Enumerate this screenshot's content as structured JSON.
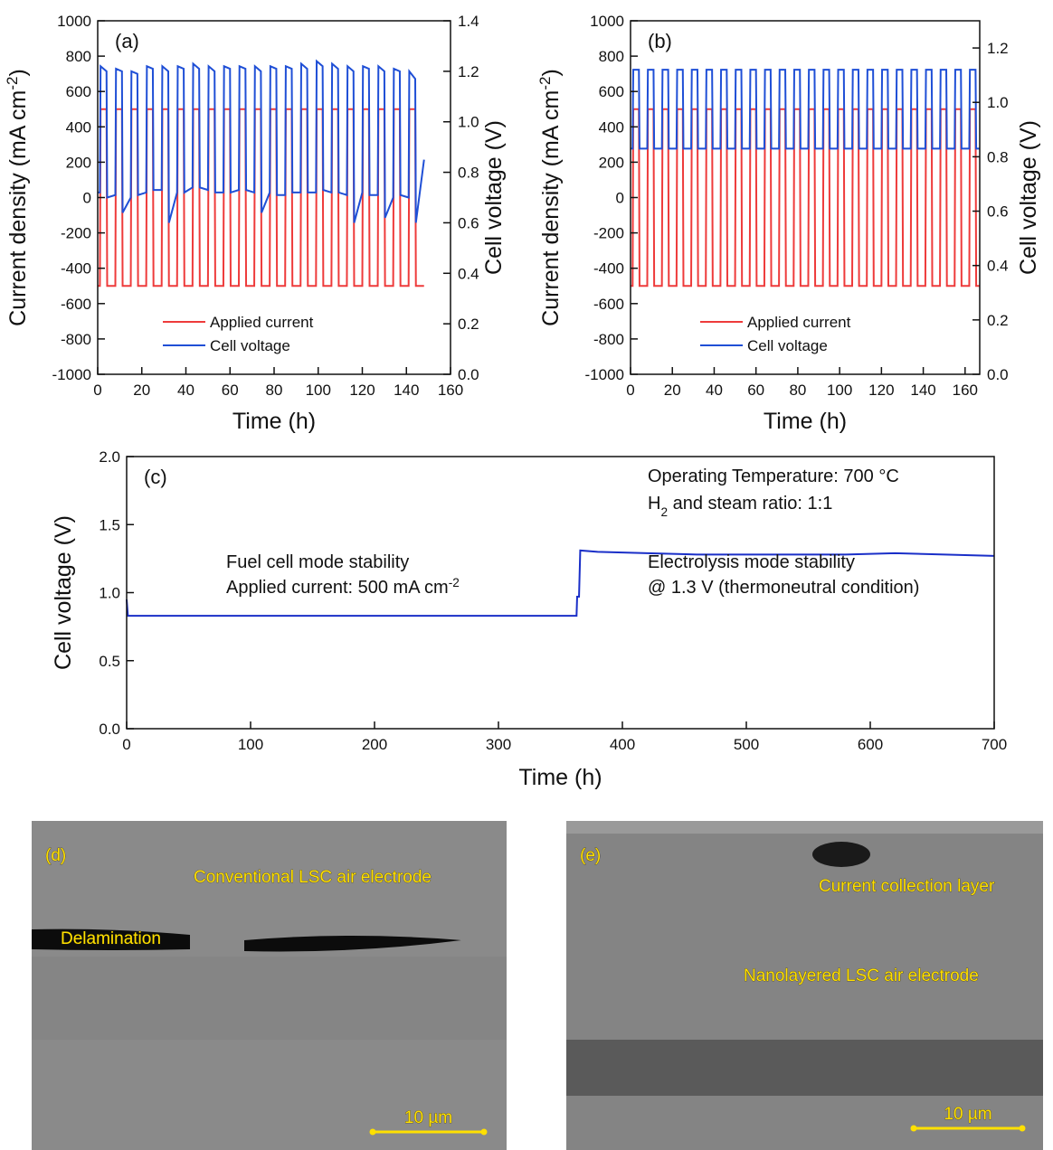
{
  "chart_data": [
    {
      "type": "line",
      "panel_label": "(a)",
      "x_label": "Time (h)",
      "y_label": [
        {
          "text": "Current density (mA cm"
        },
        {
          "text": "-2",
          "sup": true
        },
        {
          "text": ")"
        }
      ],
      "y2_label": "Cell voltage (V)",
      "xlim": [
        0,
        160
      ],
      "xticks": [
        0,
        20,
        40,
        60,
        80,
        100,
        120,
        140,
        160
      ],
      "ylim": [
        -1000,
        1000
      ],
      "yticks": [
        -1000,
        -800,
        -600,
        -400,
        -200,
        0,
        200,
        400,
        600,
        800,
        1000
      ],
      "y2lim": [
        0,
        1.4
      ],
      "y2ticks": [
        {
          "value": 0,
          "label": "0.0"
        },
        0.2,
        0.4,
        0.6,
        0.8,
        {
          "value": 1,
          "label": "1.0"
        },
        1.2,
        1.4
      ],
      "legend": "lower left",
      "x": [
        0,
        1,
        1.3,
        4,
        4.3,
        8,
        8.3,
        11,
        11.3,
        15,
        15.3,
        18,
        18.3,
        22,
        22.3,
        25,
        25.3,
        29,
        29.3,
        32,
        32.3,
        36,
        36.3,
        39,
        39.3,
        43,
        43.3,
        46,
        46.3,
        50,
        50.3,
        53,
        53.3,
        57,
        57.3,
        60,
        60.3,
        64,
        64.3,
        67,
        67.3,
        71,
        71.3,
        74,
        74.3,
        78,
        78.3,
        81,
        81.3,
        85,
        85.3,
        88,
        88.3,
        92,
        92.3,
        95,
        95.3,
        99,
        99.3,
        102,
        102.3,
        106,
        106.3,
        109,
        109.3,
        113,
        113.3,
        116,
        116.3,
        120,
        120.3,
        123,
        123.3,
        127,
        127.3,
        130,
        130.3,
        134,
        134.3,
        137,
        137.3,
        141,
        141.3,
        144,
        144.3,
        148
      ],
      "series": [
        {
          "name": "Applied current",
          "color": "#ee3b3b",
          "values": [
            -500,
            -500,
            500,
            500,
            -500,
            -500,
            500,
            500,
            -500,
            -500,
            500,
            500,
            -500,
            -500,
            500,
            500,
            -500,
            -500,
            500,
            500,
            -500,
            -500,
            500,
            500,
            -500,
            -500,
            500,
            500,
            -500,
            -500,
            500,
            500,
            -500,
            -500,
            500,
            500,
            -500,
            -500,
            500,
            500,
            -500,
            -500,
            500,
            500,
            -500,
            -500,
            500,
            500,
            -500,
            -500,
            500,
            500,
            -500,
            -500,
            500,
            500,
            -500,
            -500,
            500,
            500,
            -500,
            -500,
            500,
            500,
            -500,
            -500,
            500,
            500,
            -500,
            -500,
            500,
            500,
            -500,
            -500,
            500,
            500,
            -500,
            -500,
            500,
            500,
            -500,
            -500,
            500,
            500,
            -500,
            -500
          ]
        },
        {
          "name": "Cell voltage",
          "color": "#1f4fd6",
          "axis": "y2",
          "values": [
            0.72,
            0.72,
            1.22,
            1.2,
            0.7,
            0.71,
            1.21,
            1.2,
            0.64,
            0.7,
            1.2,
            1.19,
            0.71,
            0.72,
            1.22,
            1.21,
            0.73,
            0.73,
            1.22,
            1.2,
            0.6,
            0.72,
            1.22,
            1.21,
            0.72,
            0.74,
            1.23,
            1.21,
            0.74,
            0.73,
            1.22,
            1.2,
            0.72,
            0.72,
            1.22,
            1.21,
            0.72,
            0.73,
            1.22,
            1.21,
            0.73,
            0.72,
            1.22,
            1.2,
            0.64,
            0.72,
            1.22,
            1.21,
            0.71,
            0.71,
            1.22,
            1.21,
            0.72,
            0.72,
            1.23,
            1.21,
            0.72,
            0.72,
            1.24,
            1.22,
            0.73,
            0.72,
            1.23,
            1.21,
            0.72,
            0.71,
            1.22,
            1.2,
            0.6,
            0.72,
            1.22,
            1.21,
            0.71,
            0.71,
            1.22,
            1.2,
            0.62,
            0.7,
            1.21,
            1.2,
            0.71,
            0.7,
            1.2,
            1.17,
            0.6,
            0.85
          ]
        }
      ]
    },
    {
      "type": "line",
      "panel_label": "(b)",
      "x_label": "Time (h)",
      "y_label": [
        {
          "text": "Current density (mA cm"
        },
        {
          "text": "-2",
          "sup": true
        },
        {
          "text": ")"
        }
      ],
      "y2_label": "Cell voltage (V)",
      "xlim": [
        0,
        167
      ],
      "xticks": [
        0,
        20,
        40,
        60,
        80,
        100,
        120,
        140,
        160
      ],
      "ylim": [
        -1000,
        1000
      ],
      "yticks": [
        -1000,
        -800,
        -600,
        -400,
        -200,
        0,
        200,
        400,
        600,
        800,
        1000
      ],
      "y2lim": [
        0,
        1.3
      ],
      "y2ticks": [
        {
          "value": 0,
          "label": "0.0"
        },
        0.2,
        0.4,
        0.6,
        0.8,
        {
          "value": 1,
          "label": "1.0"
        },
        1.2
      ],
      "legend": "lower left",
      "x": [
        0,
        1,
        1.3,
        4,
        4.3,
        8,
        8.3,
        11,
        11.3,
        15,
        15.3,
        18,
        18.3,
        22,
        22.3,
        25,
        25.3,
        29,
        29.3,
        32,
        32.3,
        36,
        36.3,
        39,
        39.3,
        43,
        43.3,
        46,
        46.3,
        50,
        50.3,
        53,
        53.3,
        57,
        57.3,
        60,
        60.3,
        64,
        64.3,
        67,
        67.3,
        71,
        71.3,
        74,
        74.3,
        78,
        78.3,
        81,
        81.3,
        85,
        85.3,
        88,
        88.3,
        92,
        92.3,
        95,
        95.3,
        99,
        99.3,
        102,
        102.3,
        106,
        106.3,
        109,
        109.3,
        113,
        113.3,
        116,
        116.3,
        120,
        120.3,
        123,
        123.3,
        127,
        127.3,
        130,
        130.3,
        134,
        134.3,
        137,
        137.3,
        141,
        141.3,
        144,
        144.3,
        148,
        148.3,
        151,
        151.3,
        155,
        155.3,
        158,
        158.3,
        162,
        162.3,
        165,
        165.3,
        167
      ],
      "series": [
        {
          "name": "Applied current",
          "color": "#ee3b3b",
          "values": [
            -500,
            -500,
            500,
            500,
            -500,
            -500,
            500,
            500,
            -500,
            -500,
            500,
            500,
            -500,
            -500,
            500,
            500,
            -500,
            -500,
            500,
            500,
            -500,
            -500,
            500,
            500,
            -500,
            -500,
            500,
            500,
            -500,
            -500,
            500,
            500,
            -500,
            -500,
            500,
            500,
            -500,
            -500,
            500,
            500,
            -500,
            -500,
            500,
            500,
            -500,
            -500,
            500,
            500,
            -500,
            -500,
            500,
            500,
            -500,
            -500,
            500,
            500,
            -500,
            -500,
            500,
            500,
            -500,
            -500,
            500,
            500,
            -500,
            -500,
            500,
            500,
            -500,
            -500,
            500,
            500,
            -500,
            -500,
            500,
            500,
            -500,
            -500,
            500,
            500,
            -500,
            -500,
            500,
            500,
            -500,
            -500,
            500,
            500,
            -500,
            -500,
            500,
            500,
            -500,
            -500,
            500,
            500,
            -500,
            -500
          ]
        },
        {
          "name": "Cell voltage",
          "color": "#1f4fd6",
          "axis": "y2",
          "values": [
            0.83,
            0.83,
            1.12,
            1.12,
            0.83,
            0.83,
            1.12,
            1.12,
            0.83,
            0.83,
            1.12,
            1.12,
            0.83,
            0.83,
            1.12,
            1.12,
            0.83,
            0.83,
            1.12,
            1.12,
            0.83,
            0.83,
            1.12,
            1.12,
            0.83,
            0.83,
            1.12,
            1.12,
            0.83,
            0.83,
            1.12,
            1.12,
            0.83,
            0.83,
            1.12,
            1.12,
            0.83,
            0.83,
            1.12,
            1.12,
            0.83,
            0.83,
            1.12,
            1.12,
            0.83,
            0.83,
            1.12,
            1.12,
            0.83,
            0.83,
            1.12,
            1.12,
            0.83,
            0.83,
            1.12,
            1.12,
            0.83,
            0.83,
            1.12,
            1.12,
            0.83,
            0.83,
            1.12,
            1.12,
            0.83,
            0.83,
            1.12,
            1.12,
            0.83,
            0.83,
            1.12,
            1.12,
            0.83,
            0.83,
            1.12,
            1.12,
            0.83,
            0.83,
            1.12,
            1.12,
            0.83,
            0.83,
            1.12,
            1.12,
            0.83,
            0.83,
            1.12,
            1.12,
            0.83,
            0.83,
            1.12,
            1.12,
            0.83,
            0.83,
            1.12,
            1.12,
            0.83,
            0.83
          ]
        }
      ]
    },
    {
      "type": "line",
      "panel_label": "(c)",
      "x_label": "Time (h)",
      "y_label": "Cell voltage (V)",
      "xlim": [
        0,
        700
      ],
      "xticks": [
        0,
        100,
        200,
        300,
        400,
        500,
        600,
        700
      ],
      "ylim": [
        0,
        2
      ],
      "yticks": [
        {
          "value": 0,
          "label": "0.0"
        },
        0.5,
        {
          "value": 1,
          "label": "1.0"
        },
        1.5,
        {
          "value": 2,
          "label": "2.0"
        }
      ],
      "annotations": [
        [
          {
            "text": "Operating Temperature: 700 °C"
          }
        ],
        [
          {
            "text": "H"
          },
          {
            "text": "2",
            "sub": true
          },
          {
            "text": " and steam ratio: 1:1"
          }
        ],
        [
          {
            "text": "Fuel cell mode stability"
          }
        ],
        [
          {
            "text": "Applied current: 500 mA cm"
          },
          {
            "text": "-2",
            "sup": true
          }
        ],
        [
          {
            "text": "Electrolysis mode stability"
          }
        ],
        [
          {
            "text": "@ 1.3 V (thermoneutral condition)"
          }
        ]
      ],
      "x": [
        0,
        1,
        363,
        363.5,
        365,
        366,
        380,
        420,
        460,
        500,
        540,
        580,
        620,
        660,
        700
      ],
      "series": [
        {
          "name": "Cell voltage",
          "color": "#1a2fc8",
          "values": [
            0.95,
            0.83,
            0.83,
            0.97,
            0.97,
            1.31,
            1.3,
            1.29,
            1.28,
            1.28,
            1.28,
            1.28,
            1.29,
            1.28,
            1.27
          ]
        }
      ]
    }
  ],
  "images": [
    {
      "label": "(d)",
      "annotations": [
        "Conventional LSC air electrode",
        "Delamination"
      ],
      "scale_bar": "10 µm"
    },
    {
      "label": "(e)",
      "annotations": [
        "Current collection layer",
        "Nanolayered LSC air electrode"
      ],
      "scale_bar": "10 µm"
    }
  ]
}
